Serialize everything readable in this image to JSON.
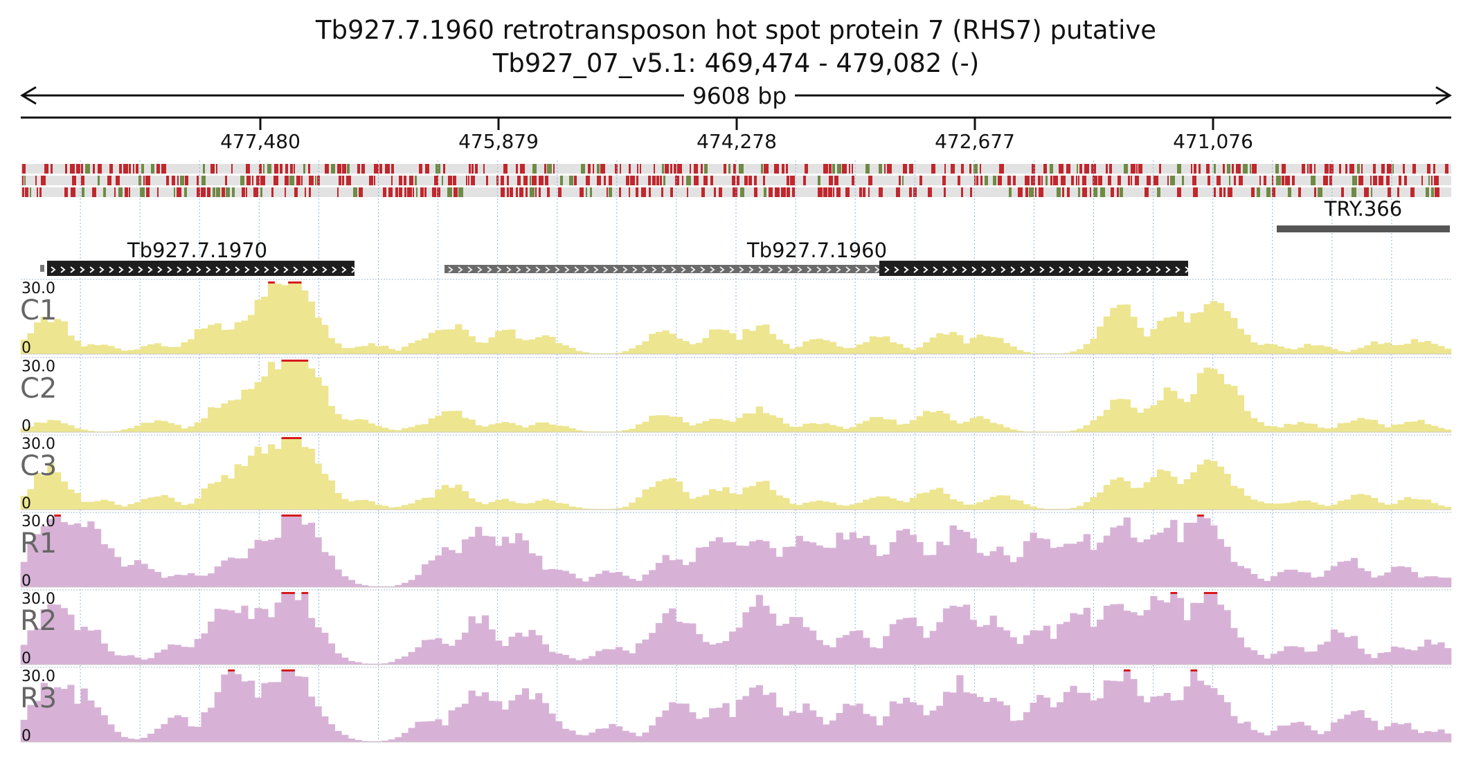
{
  "header": {
    "title_line1": "Tb927.7.1960  retrotransposon hot spot protein 7 (RHS7)  putative",
    "title_line2": "Tb927_07_v5.1: 469,474 - 479,082 (-)"
  },
  "span": {
    "label": "9608 bp"
  },
  "ruler": {
    "ticks": [
      "477,480",
      "475,879",
      "474,278",
      "472,677",
      "471,076"
    ]
  },
  "colors": {
    "conservation_red": "#c0272d",
    "conservation_green": "#6f8a45",
    "gene_black": "#1e1e1e",
    "gene_gray": "#6a6a6a",
    "track_yellow": "#ede58f",
    "track_purple": "#d7b2d6",
    "clip_red": "#d7191c"
  },
  "features": {
    "genes": [
      {
        "name": "Tb927.7.1970"
      },
      {
        "name": "Tb927.7.1960"
      },
      {
        "name": "TRY.366"
      }
    ]
  },
  "tracks": [
    {
      "name": "C1",
      "max": "30.0",
      "min": "0",
      "color": "#ede58f"
    },
    {
      "name": "C2",
      "max": "30.0",
      "min": "0",
      "color": "#ede58f"
    },
    {
      "name": "C3",
      "max": "30.0",
      "min": "0",
      "color": "#ede58f"
    },
    {
      "name": "R1",
      "max": "30.0",
      "min": "0",
      "color": "#d7b2d6"
    },
    {
      "name": "R2",
      "max": "30.0",
      "min": "0",
      "color": "#d7b2d6"
    },
    {
      "name": "R3",
      "max": "30.0",
      "min": "0",
      "color": "#d7b2d6"
    }
  ],
  "coverage_peaks": {
    "C1": [
      [
        4,
        16
      ],
      [
        11,
        4
      ],
      [
        20,
        4
      ],
      [
        28,
        13
      ],
      [
        33,
        15
      ],
      [
        38,
        32
      ],
      [
        40,
        32
      ],
      [
        44,
        2
      ],
      [
        52,
        4
      ],
      [
        61,
        8
      ],
      [
        64,
        12
      ],
      [
        72,
        10
      ],
      [
        78,
        7
      ],
      [
        96,
        10
      ],
      [
        104,
        10
      ],
      [
        110,
        12
      ],
      [
        119,
        6
      ],
      [
        128,
        7
      ],
      [
        138,
        9
      ],
      [
        144,
        8
      ],
      [
        164,
        20
      ],
      [
        172,
        18
      ],
      [
        178,
        22
      ],
      [
        186,
        4
      ],
      [
        193,
        4
      ],
      [
        203,
        5
      ],
      [
        209,
        6
      ]
    ],
    "C2": [
      [
        4,
        5
      ],
      [
        20,
        5
      ],
      [
        30,
        12
      ],
      [
        35,
        22
      ],
      [
        39,
        32
      ],
      [
        41,
        32
      ],
      [
        50,
        5
      ],
      [
        61,
        4
      ],
      [
        64,
        9
      ],
      [
        72,
        4
      ],
      [
        78,
        4
      ],
      [
        96,
        8
      ],
      [
        104,
        6
      ],
      [
        110,
        10
      ],
      [
        119,
        4
      ],
      [
        128,
        6
      ],
      [
        136,
        9
      ],
      [
        143,
        6
      ],
      [
        164,
        14
      ],
      [
        171,
        17
      ],
      [
        178,
        26
      ],
      [
        184,
        4
      ],
      [
        191,
        4
      ],
      [
        200,
        6
      ],
      [
        208,
        5
      ]
    ],
    "C3": [
      [
        4,
        18
      ],
      [
        11,
        4
      ],
      [
        20,
        6
      ],
      [
        30,
        14
      ],
      [
        35,
        24
      ],
      [
        39,
        30
      ],
      [
        41,
        32
      ],
      [
        50,
        4
      ],
      [
        61,
        5
      ],
      [
        64,
        10
      ],
      [
        72,
        4
      ],
      [
        78,
        4
      ],
      [
        96,
        14
      ],
      [
        104,
        9
      ],
      [
        110,
        12
      ],
      [
        119,
        4
      ],
      [
        128,
        6
      ],
      [
        136,
        9
      ],
      [
        146,
        6
      ],
      [
        164,
        14
      ],
      [
        170,
        16
      ],
      [
        177,
        21
      ],
      [
        184,
        4
      ],
      [
        191,
        4
      ],
      [
        200,
        6
      ],
      [
        208,
        5
      ]
    ],
    "R1": [
      [
        5,
        32
      ],
      [
        9,
        30
      ],
      [
        17,
        10
      ],
      [
        24,
        6
      ],
      [
        31,
        12
      ],
      [
        37,
        23
      ],
      [
        41,
        32
      ],
      [
        44,
        2
      ],
      [
        63,
        16
      ],
      [
        68,
        24
      ],
      [
        73,
        22
      ],
      [
        79,
        9
      ],
      [
        88,
        7
      ],
      [
        97,
        13
      ],
      [
        104,
        22
      ],
      [
        110,
        20
      ],
      [
        117,
        22
      ],
      [
        124,
        24
      ],
      [
        132,
        22
      ],
      [
        140,
        24
      ],
      [
        145,
        16
      ],
      [
        152,
        21
      ],
      [
        158,
        22
      ],
      [
        164,
        29
      ],
      [
        171,
        26
      ],
      [
        176,
        28
      ],
      [
        181,
        9
      ],
      [
        190,
        8
      ],
      [
        198,
        12
      ],
      [
        206,
        8
      ],
      [
        211,
        5
      ]
    ],
    "R2": [
      [
        5,
        24
      ],
      [
        9,
        18
      ],
      [
        15,
        4
      ],
      [
        23,
        8
      ],
      [
        31,
        26
      ],
      [
        36,
        24
      ],
      [
        40,
        32
      ],
      [
        45,
        4
      ],
      [
        61,
        11
      ],
      [
        68,
        20
      ],
      [
        75,
        14
      ],
      [
        79,
        5
      ],
      [
        88,
        7
      ],
      [
        97,
        22
      ],
      [
        104,
        10
      ],
      [
        110,
        26
      ],
      [
        116,
        20
      ],
      [
        124,
        14
      ],
      [
        132,
        20
      ],
      [
        140,
        25
      ],
      [
        145,
        20
      ],
      [
        152,
        16
      ],
      [
        158,
        22
      ],
      [
        164,
        26
      ],
      [
        171,
        30
      ],
      [
        177,
        30
      ],
      [
        181,
        10
      ],
      [
        190,
        8
      ],
      [
        197,
        14
      ],
      [
        206,
        8
      ],
      [
        211,
        10
      ]
    ],
    "R3": [
      [
        5,
        26
      ],
      [
        9,
        20
      ],
      [
        12,
        4
      ],
      [
        23,
        10
      ],
      [
        32,
        30
      ],
      [
        36,
        22
      ],
      [
        40,
        32
      ],
      [
        45,
        4
      ],
      [
        61,
        10
      ],
      [
        68,
        22
      ],
      [
        75,
        22
      ],
      [
        79,
        8
      ],
      [
        88,
        7
      ],
      [
        98,
        18
      ],
      [
        104,
        16
      ],
      [
        110,
        23
      ],
      [
        117,
        15
      ],
      [
        124,
        18
      ],
      [
        132,
        20
      ],
      [
        140,
        25
      ],
      [
        145,
        18
      ],
      [
        152,
        18
      ],
      [
        158,
        24
      ],
      [
        164,
        30
      ],
      [
        170,
        22
      ],
      [
        176,
        30
      ],
      [
        181,
        10
      ],
      [
        190,
        8
      ],
      [
        199,
        14
      ],
      [
        206,
        8
      ],
      [
        211,
        5
      ]
    ]
  }
}
